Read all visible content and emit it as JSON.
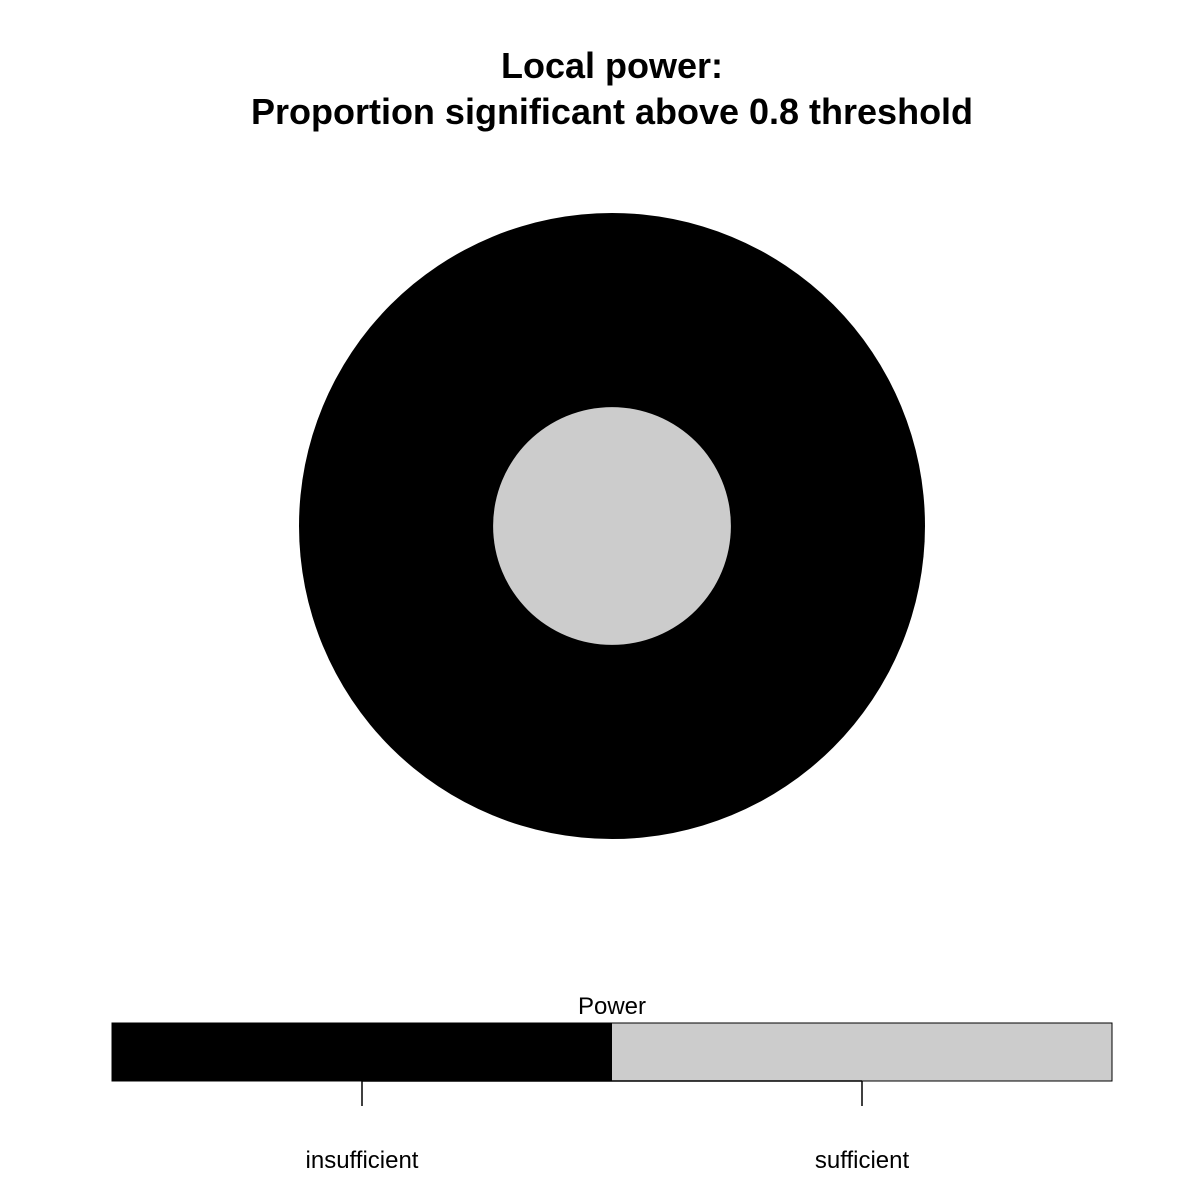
{
  "chart_data": {
    "type": "heatmap",
    "title_lines": [
      "Local power:",
      "Proportion significant above 0.8 threshold"
    ],
    "xlabel": "",
    "ylabel": "",
    "grid": false,
    "legend": {
      "title": "Power",
      "placement": "bottom",
      "categories": [
        "insufficient",
        "sufficient"
      ],
      "colors": [
        "#000000",
        "#cccccc"
      ]
    },
    "regions": [
      {
        "category": "insufficient",
        "shape": "disc",
        "relative_radius": 1.0
      },
      {
        "category": "sufficient",
        "shape": "disc",
        "relative_radius": 0.38
      }
    ]
  }
}
